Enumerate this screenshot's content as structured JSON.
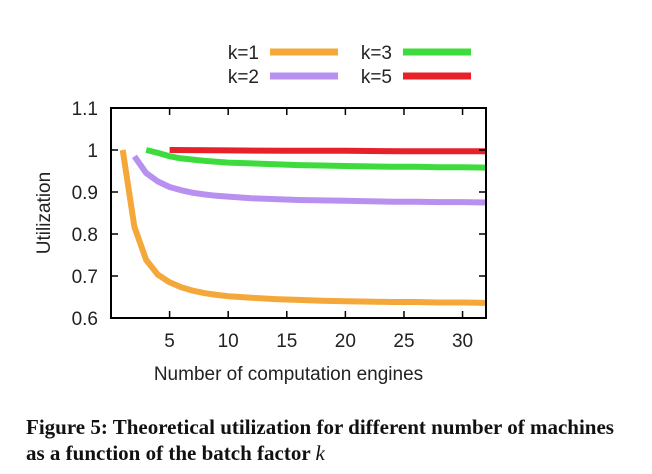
{
  "chart_data": {
    "type": "line",
    "xlabel": "Number of computation engines",
    "ylabel": "Utilization",
    "xlim": [
      0,
      32
    ],
    "ylim": [
      0.6,
      1.1
    ],
    "xticks": [
      5,
      10,
      15,
      20,
      25,
      30
    ],
    "yticks": [
      0.6,
      0.7,
      0.8,
      0.9,
      1,
      1.1
    ],
    "ytick_labels": [
      "0.6",
      "0.7",
      "0.8",
      "0.9",
      "1",
      "1.1"
    ],
    "legend_position": "top",
    "series": [
      {
        "name": "k=1",
        "color": "#f5a83a",
        "x": [
          1,
          2,
          3,
          4,
          5,
          6,
          7,
          8,
          9,
          10,
          12,
          14,
          16,
          18,
          20,
          22,
          24,
          26,
          28,
          30,
          32
        ],
        "y": [
          1.0,
          0.817,
          0.738,
          0.703,
          0.685,
          0.673,
          0.665,
          0.659,
          0.655,
          0.652,
          0.648,
          0.645,
          0.643,
          0.641,
          0.64,
          0.639,
          0.638,
          0.638,
          0.637,
          0.637,
          0.636
        ]
      },
      {
        "name": "k=2",
        "color": "#b891f0",
        "x": [
          2,
          3,
          4,
          5,
          6,
          7,
          8,
          9,
          10,
          12,
          14,
          16,
          18,
          20,
          22,
          24,
          26,
          28,
          30,
          32
        ],
        "y": [
          0.985,
          0.945,
          0.925,
          0.912,
          0.904,
          0.898,
          0.894,
          0.891,
          0.889,
          0.885,
          0.883,
          0.881,
          0.88,
          0.879,
          0.878,
          0.877,
          0.877,
          0.876,
          0.876,
          0.875
        ]
      },
      {
        "name": "k=3",
        "color": "#3ddc3d",
        "x": [
          3,
          4,
          5,
          6,
          8,
          10,
          12,
          14,
          16,
          18,
          20,
          22,
          24,
          26,
          28,
          30,
          32
        ],
        "y": [
          1.0,
          0.993,
          0.985,
          0.98,
          0.974,
          0.97,
          0.968,
          0.966,
          0.964,
          0.963,
          0.962,
          0.961,
          0.96,
          0.96,
          0.959,
          0.959,
          0.958
        ]
      },
      {
        "name": "k=5",
        "color": "#e8202a",
        "x": [
          5,
          10,
          15,
          20,
          25,
          30,
          32
        ],
        "y": [
          1.0,
          0.999,
          0.998,
          0.998,
          0.997,
          0.997,
          0.997
        ]
      }
    ]
  },
  "caption": {
    "text": "Figure 5: Theoretical utilization for different number of machines as a function of the batch factor ",
    "variable": "k"
  }
}
